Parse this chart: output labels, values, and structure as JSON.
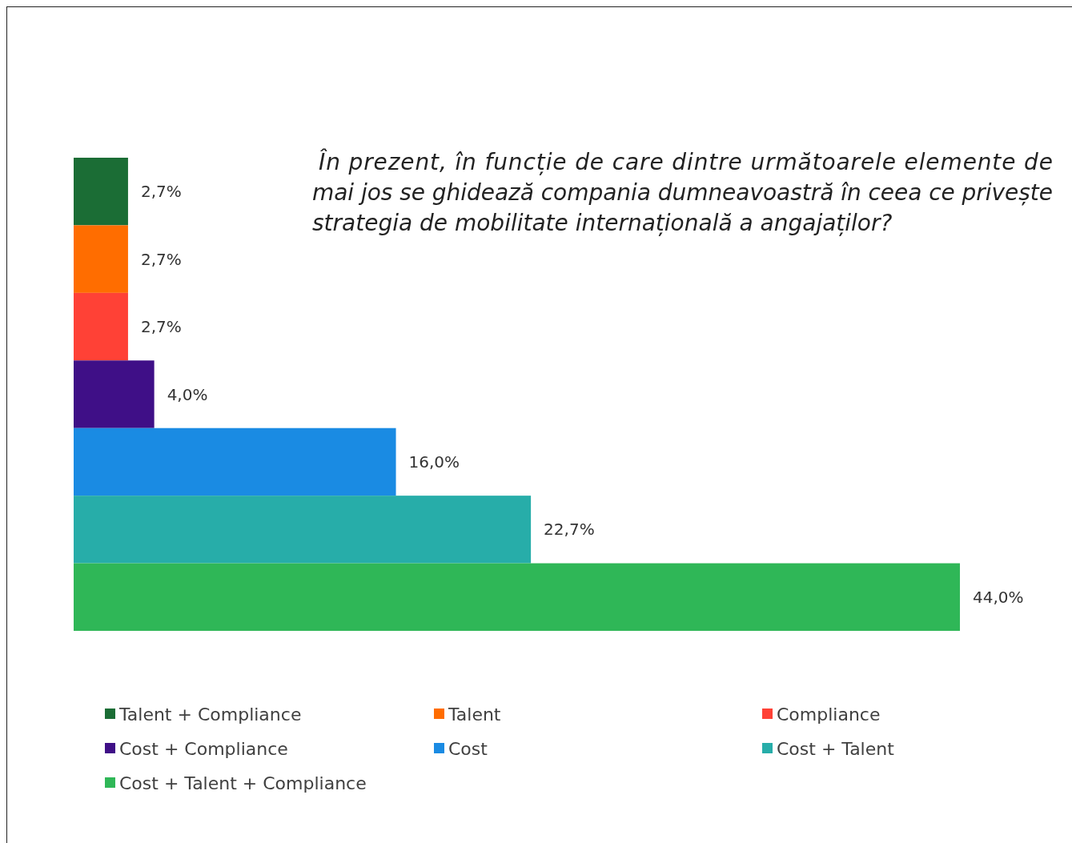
{
  "chart_data": {
    "type": "bar",
    "orientation": "horizontal",
    "title": "În prezent, în funcție de care dintre următoarele elemente de mai jos se ghidează compania dumneavoastră în ceea ce privește strategia de mobilitate internațională a angajaților?",
    "categories": [
      null
    ],
    "legend": "bottom",
    "series": [
      {
        "name": "Talent + Compliance",
        "color": "#1b6d35",
        "values": [
          2.7
        ],
        "value_labels": [
          "2,7%"
        ]
      },
      {
        "name": "Talent",
        "color": "#ff6d00",
        "values": [
          2.7
        ],
        "value_labels": [
          "2,7%"
        ]
      },
      {
        "name": "Compliance",
        "color": "#ff4136",
        "values": [
          2.7
        ],
        "value_labels": [
          "2,7%"
        ]
      },
      {
        "name": "Cost + Compliance",
        "color": "#3f0f87",
        "values": [
          4.0
        ],
        "value_labels": [
          "4,0%"
        ]
      },
      {
        "name": "Cost",
        "color": "#1a8be3",
        "values": [
          16.0
        ],
        "value_labels": [
          "16,0%"
        ]
      },
      {
        "name": "Cost + Talent",
        "color": "#27ada9",
        "values": [
          22.7
        ],
        "value_labels": [
          "22,7%"
        ]
      },
      {
        "name": "Cost + Talent + Compliance",
        "color": "#2fb757",
        "values": [
          44.0
        ],
        "value_labels": [
          "44,0%"
        ]
      }
    ]
  }
}
